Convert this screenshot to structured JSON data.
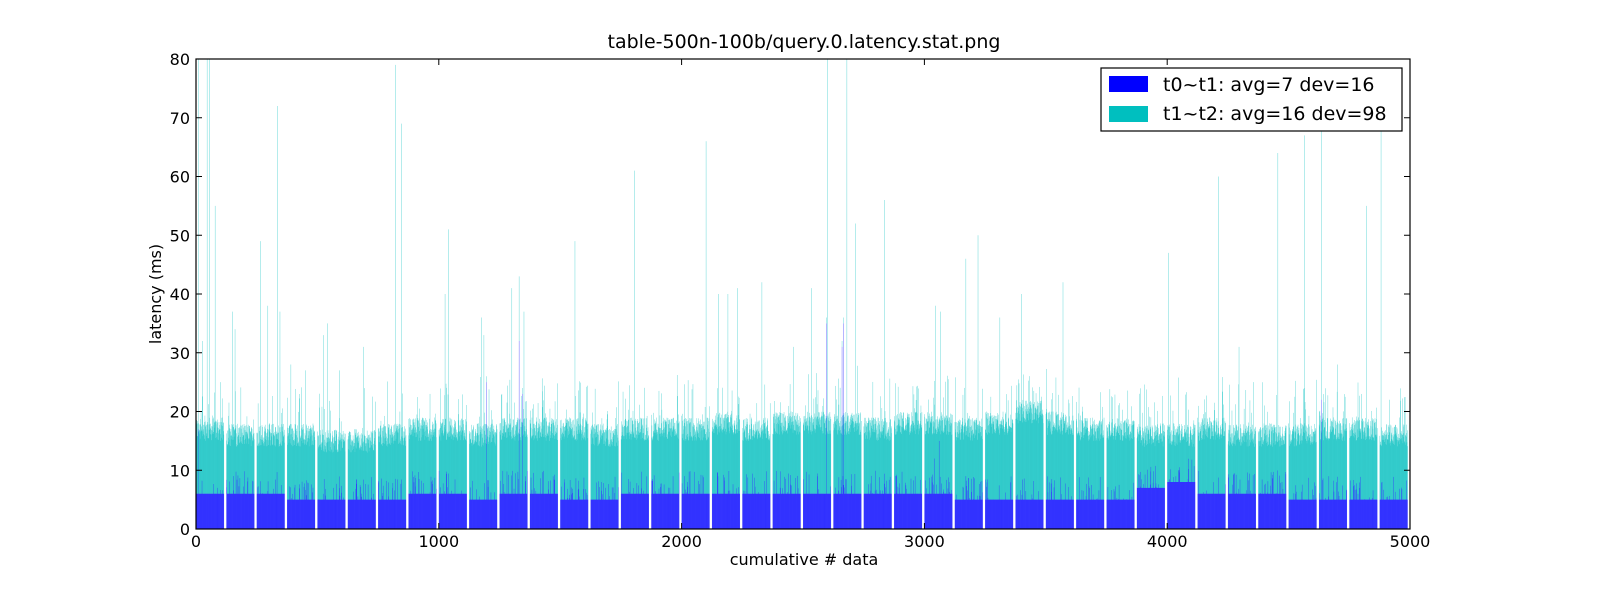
{
  "chart_data": {
    "type": "bar",
    "title": "table-500n-100b/query.0.latency.stat.png",
    "xlabel": "cumulative # data",
    "ylabel": "latency (ms)",
    "xlim": [
      0,
      5000
    ],
    "ylim": [
      0,
      80
    ],
    "xticks": [
      0,
      1000,
      2000,
      3000,
      4000,
      5000
    ],
    "yticks": [
      0,
      10,
      20,
      30,
      40,
      50,
      60,
      70,
      80
    ],
    "stacked": true,
    "grid": false,
    "legend_position": "top-right",
    "n_points": 5000,
    "segment_width": 125,
    "gap_width": 10,
    "series": [
      {
        "name": "t0~t1: avg=7 dev=16",
        "color": "#0000ff",
        "bar_alpha": 0.75,
        "baseline_by_segment": [
          6,
          6,
          6,
          5,
          5,
          5,
          5,
          6,
          6,
          5,
          6,
          6,
          5,
          5,
          6,
          6,
          6,
          6,
          6,
          6,
          6,
          6,
          6,
          6,
          6,
          5,
          5,
          5,
          5,
          5,
          5,
          7,
          8,
          6,
          6,
          6,
          5,
          5,
          5,
          5
        ],
        "spikes": [
          {
            "x": 8,
            "y": 17
          },
          {
            "x": 1195,
            "y": 25
          },
          {
            "x": 1330,
            "y": 32
          },
          {
            "x": 1345,
            "y": 23
          },
          {
            "x": 2595,
            "y": 35
          },
          {
            "x": 2660,
            "y": 31
          },
          {
            "x": 2665,
            "y": 35
          },
          {
            "x": 3040,
            "y": 12
          },
          {
            "x": 3060,
            "y": 15
          },
          {
            "x": 3170,
            "y": 9
          },
          {
            "x": 4635,
            "y": 22
          }
        ]
      },
      {
        "name": "t1~t2: avg=16 dev=98",
        "color": "#00bfbf",
        "bar_alpha": 0.75,
        "baseline_by_segment": [
          17,
          16,
          16,
          16,
          15,
          15,
          16,
          17,
          17,
          16,
          17,
          17,
          17,
          16,
          17,
          17,
          17,
          18,
          17,
          18,
          18,
          18,
          17,
          18,
          18,
          17,
          18,
          20,
          18,
          17,
          17,
          16,
          16,
          17,
          16,
          16,
          16,
          17,
          17,
          16
        ],
        "spikes": [
          {
            "x": 10,
            "y": 80
          },
          {
            "x": 25,
            "y": 32
          },
          {
            "x": 45,
            "y": 80
          },
          {
            "x": 55,
            "y": 80
          },
          {
            "x": 78,
            "y": 55
          },
          {
            "x": 100,
            "y": 25
          },
          {
            "x": 150,
            "y": 37
          },
          {
            "x": 160,
            "y": 34
          },
          {
            "x": 265,
            "y": 49
          },
          {
            "x": 295,
            "y": 38
          },
          {
            "x": 335,
            "y": 72
          },
          {
            "x": 345,
            "y": 37
          },
          {
            "x": 390,
            "y": 28
          },
          {
            "x": 450,
            "y": 27
          },
          {
            "x": 525,
            "y": 33
          },
          {
            "x": 540,
            "y": 35
          },
          {
            "x": 590,
            "y": 27
          },
          {
            "x": 690,
            "y": 31
          },
          {
            "x": 820,
            "y": 79
          },
          {
            "x": 845,
            "y": 69
          },
          {
            "x": 1025,
            "y": 40
          },
          {
            "x": 1040,
            "y": 51
          },
          {
            "x": 1175,
            "y": 36
          },
          {
            "x": 1185,
            "y": 33
          },
          {
            "x": 1300,
            "y": 41
          },
          {
            "x": 1330,
            "y": 43
          },
          {
            "x": 1350,
            "y": 37
          },
          {
            "x": 1560,
            "y": 49
          },
          {
            "x": 1805,
            "y": 61
          },
          {
            "x": 2100,
            "y": 66
          },
          {
            "x": 2150,
            "y": 40
          },
          {
            "x": 2190,
            "y": 40
          },
          {
            "x": 2230,
            "y": 41
          },
          {
            "x": 2330,
            "y": 42
          },
          {
            "x": 2460,
            "y": 31
          },
          {
            "x": 2535,
            "y": 41
          },
          {
            "x": 2600,
            "y": 80
          },
          {
            "x": 2680,
            "y": 80
          },
          {
            "x": 2715,
            "y": 52
          },
          {
            "x": 2835,
            "y": 56
          },
          {
            "x": 3045,
            "y": 38
          },
          {
            "x": 3065,
            "y": 37
          },
          {
            "x": 3170,
            "y": 46
          },
          {
            "x": 3220,
            "y": 50
          },
          {
            "x": 3310,
            "y": 36
          },
          {
            "x": 3400,
            "y": 40
          },
          {
            "x": 3570,
            "y": 42
          },
          {
            "x": 4005,
            "y": 47
          },
          {
            "x": 4210,
            "y": 60
          },
          {
            "x": 4295,
            "y": 31
          },
          {
            "x": 4455,
            "y": 64
          },
          {
            "x": 4495,
            "y": 34
          },
          {
            "x": 4565,
            "y": 67
          },
          {
            "x": 4635,
            "y": 68
          },
          {
            "x": 4700,
            "y": 28
          },
          {
            "x": 4820,
            "y": 55
          },
          {
            "x": 4880,
            "y": 69
          },
          {
            "x": 4915,
            "y": 22
          }
        ]
      }
    ]
  }
}
